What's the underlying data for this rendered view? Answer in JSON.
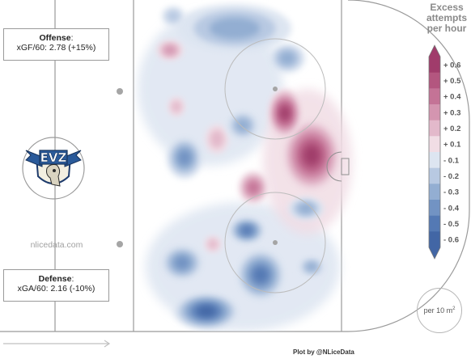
{
  "offense": {
    "title": "Offense",
    "colon": ":",
    "stat": "xGF/60: 2.78 (+15%)"
  },
  "defense": {
    "title": "Defense",
    "colon": ":",
    "stat": "xGA/60: 2.16 (-10%)"
  },
  "watermark": "nlicedata.com",
  "logo_text": "EVZ",
  "legend": {
    "title_lines": [
      "Excess",
      "attempts",
      "per hour"
    ],
    "unit_prefix": "per 10 m",
    "unit_exp": "2",
    "credit": "Plot by @NLiceData"
  },
  "chart_data": {
    "type": "heatmap",
    "title": "Excess attempts per hour",
    "colorbar": {
      "ticks": [
        {
          "label": "+ 0.6",
          "value": 0.6
        },
        {
          "label": "+ 0.5",
          "value": 0.5
        },
        {
          "label": "+ 0.4",
          "value": 0.4
        },
        {
          "label": "+ 0.3",
          "value": 0.3
        },
        {
          "label": "+ 0.2",
          "value": 0.2
        },
        {
          "label": "+ 0.1",
          "value": 0.1
        },
        {
          "label": "- 0.1",
          "value": -0.1
        },
        {
          "label": "- 0.2",
          "value": -0.2
        },
        {
          "label": "- 0.3",
          "value": -0.3
        },
        {
          "label": "- 0.4",
          "value": -0.4
        },
        {
          "label": "- 0.5",
          "value": -0.5
        },
        {
          "label": "- 0.6",
          "value": -0.6
        }
      ],
      "colors": {
        "+0.6": "#a03c6b",
        "+0.5": "#b3567f",
        "+0.4": "#c47396",
        "+0.3": "#d495b0",
        "+0.2": "#e3b9cb",
        "+0.1": "#f1dde5",
        "-0.1": "#dde5f1",
        "-0.2": "#b8c9e2",
        "-0.3": "#93aed2",
        "-0.4": "#7293c3",
        "-0.5": "#5479b4",
        "-0.6": "#4266a5"
      }
    },
    "zones": [
      {
        "region": "slot-left-top",
        "value": -0.3
      },
      {
        "region": "top-center",
        "value": -0.3
      },
      {
        "region": "top-upper-left",
        "value": -0.2
      },
      {
        "region": "upper-left-spot",
        "value": 0.3
      },
      {
        "region": "mid-left-spot",
        "value": 0.2
      },
      {
        "region": "mid-left-blue",
        "value": -0.4
      },
      {
        "region": "mid-blue-right",
        "value": -0.3
      },
      {
        "region": "crease-right",
        "value": 0.6
      },
      {
        "region": "below-crease-spot",
        "value": 0.4
      },
      {
        "region": "right-mid-blue",
        "value": -0.3
      },
      {
        "region": "lower-center",
        "value": -0.5
      },
      {
        "region": "lower-left",
        "value": -0.4
      },
      {
        "region": "bottom-left",
        "value": -0.6
      },
      {
        "region": "lower-right-spot",
        "value": -0.3
      },
      {
        "region": "lower-left-spot",
        "value": 0.2
      }
    ]
  }
}
